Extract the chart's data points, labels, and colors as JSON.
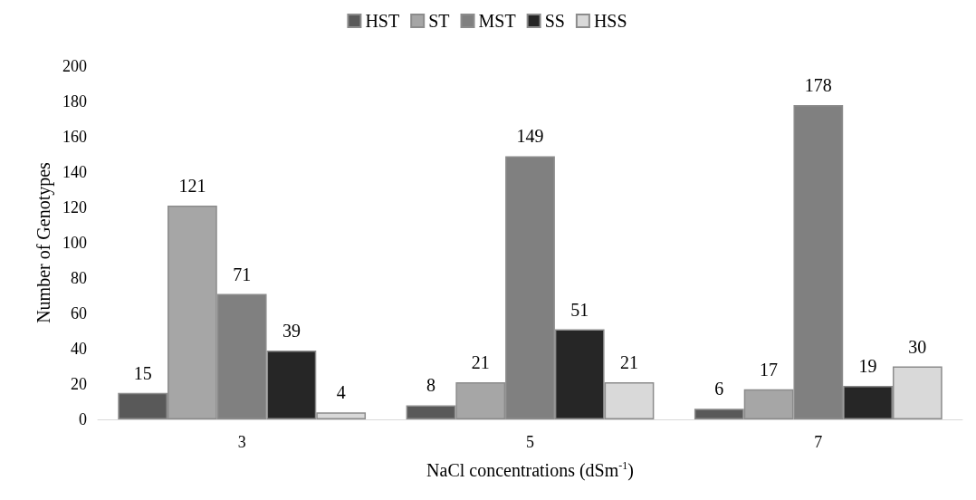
{
  "chart_data": {
    "type": "bar",
    "xlabel": "NaCl concentrations (dSm$^{-1}$)",
    "ylabel": "Number of Genotypes",
    "categories": [
      "3",
      "5",
      "7"
    ],
    "series": [
      {
        "name": "HST",
        "color": "#595959",
        "values": [
          15,
          8,
          6
        ]
      },
      {
        "name": "ST",
        "color": "#a6a6a6",
        "values": [
          121,
          21,
          17
        ]
      },
      {
        "name": "MST",
        "color": "#808080",
        "values": [
          71,
          149,
          178
        ]
      },
      {
        "name": "SS",
        "color": "#262626",
        "values": [
          39,
          51,
          19
        ]
      },
      {
        "name": "HSS",
        "color": "#d9d9d9",
        "values": [
          4,
          21,
          30
        ]
      }
    ],
    "ylim": [
      0,
      200
    ],
    "yticks": [
      0,
      20,
      40,
      60,
      80,
      100,
      120,
      140,
      160,
      180,
      200
    ],
    "grid": false,
    "legend": "top",
    "data_labels": true
  }
}
